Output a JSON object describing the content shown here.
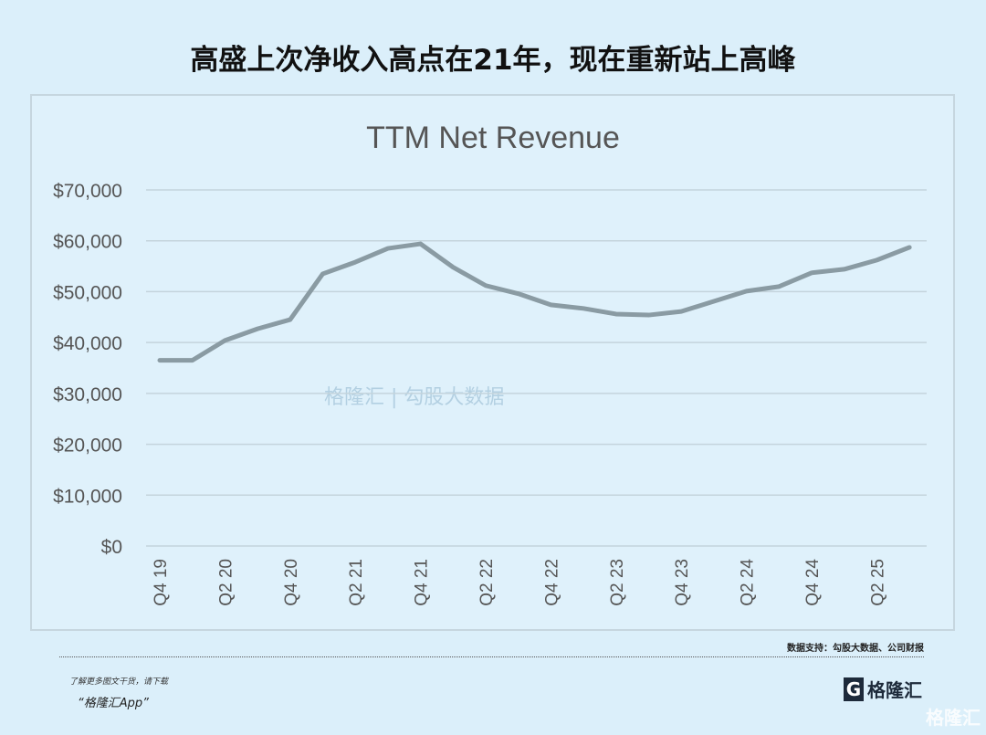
{
  "headline": "高盛上次净收入高点在21年，现在重新站上高峰",
  "source": "数据支持：勾股大数据、公司财报",
  "promo_line1": "了解更多图文干货，请下载",
  "promo_line2": "“格隆汇App”",
  "logo_text": "格隆汇",
  "watermark": "格隆汇",
  "center_watermark": "格隆汇 | 勾股大数据",
  "colors": {
    "line": "#8a9ba3",
    "grid": "#c4d4dc",
    "background": "#dbeffa"
  },
  "chart_data": {
    "type": "line",
    "title": "TTM Net Revenue",
    "xlabel": "",
    "ylabel": "",
    "ylim": [
      0,
      70000
    ],
    "yticks": [
      0,
      10000,
      20000,
      30000,
      40000,
      50000,
      60000,
      70000
    ],
    "ytick_labels": [
      "$0",
      "$10,000",
      "$20,000",
      "$30,000",
      "$40,000",
      "$50,000",
      "$60,000",
      "$70,000"
    ],
    "x": [
      "Q4 19",
      "Q1 20",
      "Q2 20",
      "Q3 20",
      "Q4 20",
      "Q1 21",
      "Q2 21",
      "Q3 21",
      "Q4 21",
      "Q1 22",
      "Q2 22",
      "Q3 22",
      "Q4 22",
      "Q1 23",
      "Q2 23",
      "Q3 23",
      "Q4 23",
      "Q1 24",
      "Q2 24",
      "Q3 24",
      "Q4 24",
      "Q1 25",
      "Q2 25",
      "Q3 25"
    ],
    "xtick_labels": [
      "Q4 19",
      "Q2 20",
      "Q4 20",
      "Q2 21",
      "Q4 21",
      "Q2 22",
      "Q4 22",
      "Q2 23",
      "Q4 23",
      "Q2 24",
      "Q4 24",
      "Q2 25"
    ],
    "series": [
      {
        "name": "TTM Net Revenue",
        "values": [
          36500,
          36500,
          40400,
          42700,
          44500,
          53500,
          55800,
          58500,
          59400,
          54800,
          51200,
          49600,
          47400,
          46700,
          45600,
          45400,
          46100,
          48100,
          50100,
          51000,
          53700,
          54400,
          56200,
          58700
        ]
      }
    ],
    "grid": true,
    "legend": "none"
  }
}
